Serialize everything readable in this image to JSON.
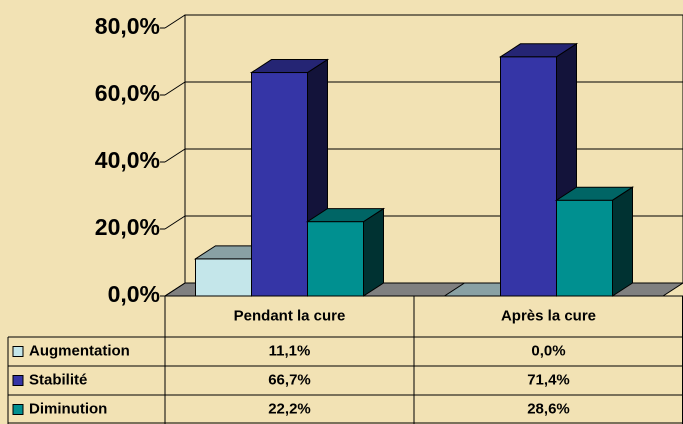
{
  "chart_data": {
    "type": "bar",
    "categories": [
      "Pendant la cure",
      "Après la cure"
    ],
    "series": [
      {
        "name": "Augmentation",
        "color": "#c4e6ea",
        "values": [
          11.1,
          0.0
        ],
        "value_labels": [
          "11,1%",
          "0,0%"
        ]
      },
      {
        "name": "Stabilité",
        "color": "#3535a6",
        "values": [
          66.7,
          71.4
        ],
        "value_labels": [
          "66,7%",
          "71,4%"
        ]
      },
      {
        "name": "Diminution",
        "color": "#009090",
        "values": [
          22.2,
          28.6
        ],
        "value_labels": [
          "22,2%",
          "28,6%"
        ]
      }
    ],
    "ylim": [
      0,
      80
    ],
    "yticks": [
      {
        "value": 0,
        "label": "0,0%"
      },
      {
        "value": 20,
        "label": "20,0%"
      },
      {
        "value": 40,
        "label": "40,0%"
      },
      {
        "value": 60,
        "label": "60,0%"
      },
      {
        "value": 80,
        "label": "80,0%"
      }
    ],
    "grid": true
  }
}
